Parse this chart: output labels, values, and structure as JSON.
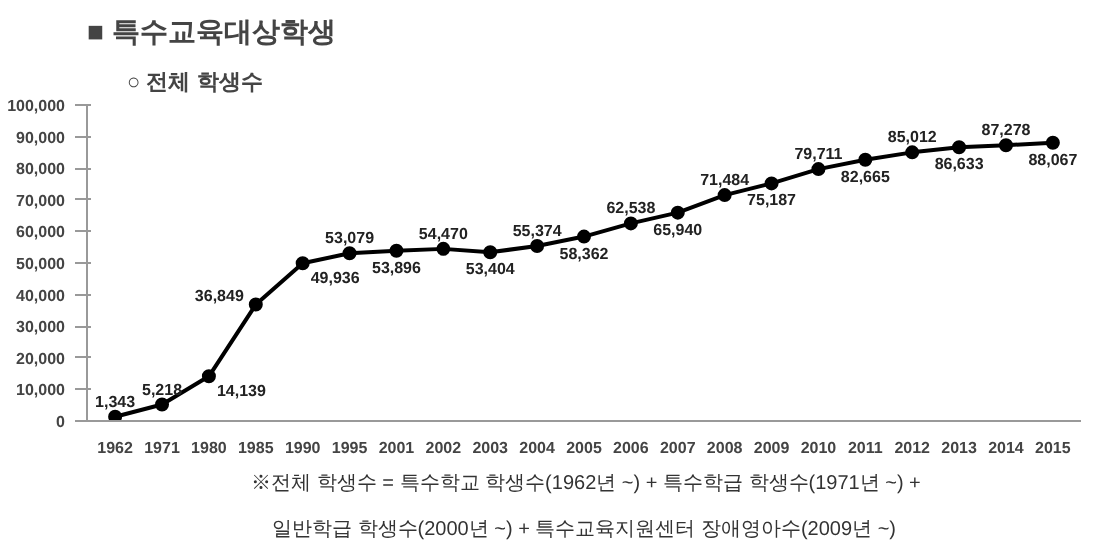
{
  "chart_data": {
    "type": "line",
    "title": "■ 특수교육대상학생",
    "subtitle": "○ 전체 학생수",
    "categories": [
      "1962",
      "1971",
      "1980",
      "1985",
      "1990",
      "1995",
      "2001",
      "2002",
      "2003",
      "2004",
      "2005",
      "2006",
      "2007",
      "2008",
      "2009",
      "2010",
      "2011",
      "2012",
      "2013",
      "2014",
      "2015"
    ],
    "series": [
      {
        "color": "#000000",
        "values": [
          1343,
          5218,
          14139,
          36849,
          49936,
          53079,
          53896,
          54470,
          53404,
          55374,
          58362,
          62538,
          65940,
          71484,
          75187,
          79711,
          82665,
          85012,
          86633,
          87278,
          88067
        ]
      }
    ],
    "ylim": [
      0,
      100000
    ],
    "yticks": [
      {
        "value": 0,
        "label": "0"
      },
      {
        "value": 10000,
        "label": "10,000"
      },
      {
        "value": 20000,
        "label": "20,000"
      },
      {
        "value": 30000,
        "label": "30,000"
      },
      {
        "value": 40000,
        "label": "40,000"
      },
      {
        "value": 50000,
        "label": "50,000"
      },
      {
        "value": 60000,
        "label": "60,000"
      },
      {
        "value": 70000,
        "label": "70,000"
      },
      {
        "value": 80000,
        "label": "80,000"
      },
      {
        "value": 90000,
        "label": "90,000"
      },
      {
        "value": 100000,
        "label": "100,000"
      }
    ],
    "value_labels": [
      "1,343",
      "5,218",
      "14,139",
      "36,849",
      "49,936",
      "53,079",
      "53,896",
      "54,470",
      "53,404",
      "55,374",
      "58,362",
      "62,538",
      "65,940",
      "71,484",
      "75,187",
      "79,711",
      "82,665",
      "85,012",
      "86,633",
      "87,278",
      "88,067"
    ],
    "marker": "circle",
    "line_style": "solid",
    "grid": false,
    "annotations": [
      "※전체 학생수 = 특수학교 학생수(1962년 ~) + 특수학급 학생수(1971년 ~) +",
      "일반학급 학생수(2000년 ~) + 특수교육지원센터 장애영아수(2009년 ~)"
    ]
  }
}
